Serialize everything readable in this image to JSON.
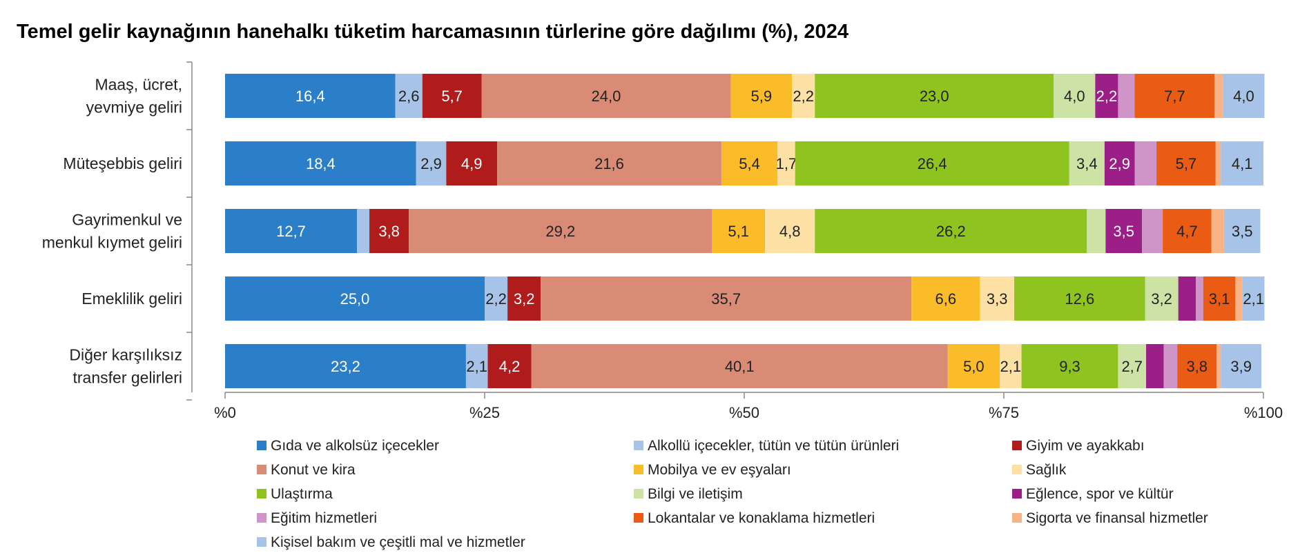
{
  "chart_data": {
    "type": "bar",
    "orientation": "horizontal",
    "stacked": true,
    "title": "Temel gelir kaynağının hanehalkı tüketim harcamasının türlerine göre dağılımı (%), 2024",
    "xlabel": "",
    "ylabel": "",
    "xlim": [
      0,
      100
    ],
    "x_ticks": [
      0,
      25,
      50,
      75,
      100
    ],
    "x_tick_labels": [
      "%0",
      "%25",
      "%50",
      "%75",
      "%100"
    ],
    "grid": false,
    "legend_position": "bottom",
    "categories": [
      [
        "Maaş, ücret,",
        "yevmiye geliri"
      ],
      [
        "Müteşebbis geliri"
      ],
      [
        "Gayrimenkul ve",
        "menkul kıymet geliri"
      ],
      [
        "Emeklilik geliri"
      ],
      [
        "Diğer karşılıksız",
        "transfer gelirleri"
      ]
    ],
    "series": [
      {
        "name": "Gıda ve alkolsüz içecekler",
        "color": "#2a7fc8",
        "label_color": "#ffffff",
        "values": [
          16.4,
          18.4,
          12.7,
          25.0,
          23.2
        ],
        "labels": [
          "16,4",
          "18,4",
          "12,7",
          "25,0",
          "23,2"
        ]
      },
      {
        "name": "Alkollü içecekler, tütün ve tütün ürünleri",
        "color": "#a7c4e8",
        "label_color": "#222222",
        "values": [
          2.6,
          2.9,
          1.2,
          2.2,
          2.1
        ],
        "labels": [
          "2,6",
          "2,9",
          null,
          "2,2",
          "2,1"
        ]
      },
      {
        "name": "Giyim ve ayakkabı",
        "color": "#b01c1c",
        "label_color": "#ffffff",
        "values": [
          5.7,
          4.9,
          3.8,
          3.2,
          4.2
        ],
        "labels": [
          "5,7",
          "4,9",
          "3,8",
          "3,2",
          "4,2"
        ]
      },
      {
        "name": "Konut ve kira",
        "color": "#d98b75",
        "label_color": "#222222",
        "values": [
          24.0,
          21.6,
          29.2,
          35.7,
          40.1
        ],
        "labels": [
          "24,0",
          "21,6",
          "29,2",
          "35,7",
          "40,1"
        ]
      },
      {
        "name": "Mobilya ve ev eşyaları",
        "color": "#fbbc2a",
        "label_color": "#222222",
        "values": [
          5.9,
          5.4,
          5.1,
          6.6,
          5.0
        ],
        "labels": [
          "5,9",
          "5,4",
          "5,1",
          "6,6",
          "5,0"
        ]
      },
      {
        "name": "Sağlık",
        "color": "#fde0a4",
        "label_color": "#222222",
        "values": [
          2.2,
          1.7,
          4.8,
          3.3,
          2.1
        ],
        "labels": [
          "2,2",
          "1,7",
          "4,8",
          "3,3",
          "2,1"
        ]
      },
      {
        "name": "Ulaştırma",
        "color": "#8fc31f",
        "label_color": "#222222",
        "values": [
          23.0,
          26.4,
          26.2,
          12.6,
          9.3
        ],
        "labels": [
          "23,0",
          "26,4",
          "26,2",
          "12,6",
          "9,3"
        ]
      },
      {
        "name": "Bilgi ve iletişim",
        "color": "#cde3a6",
        "label_color": "#222222",
        "values": [
          4.0,
          3.4,
          1.8,
          3.2,
          2.7
        ],
        "labels": [
          "4,0",
          "3,4",
          null,
          "3,2",
          "2,7"
        ]
      },
      {
        "name": "Eğlence, spor ve kültür",
        "color": "#9b1f86",
        "label_color": "#ffffff",
        "values": [
          2.2,
          2.9,
          3.5,
          1.7,
          1.7
        ],
        "labels": [
          "2,2",
          "2,9",
          "3,5",
          null,
          null
        ]
      },
      {
        "name": "Eğitim hizmetleri",
        "color": "#cf95c9",
        "label_color": "#222222",
        "values": [
          1.6,
          2.1,
          2.0,
          0.7,
          1.3
        ],
        "labels": [
          null,
          null,
          null,
          null,
          null
        ]
      },
      {
        "name": "Lokantalar ve konaklama hizmetleri",
        "color": "#ea5b14",
        "label_color": "#222222",
        "values": [
          7.7,
          5.7,
          4.7,
          3.1,
          3.8
        ],
        "labels": [
          "7,7",
          "5,7",
          "4,7",
          "3,1",
          "3,8"
        ]
      },
      {
        "name": "Sigorta ve finansal hizmetler",
        "color": "#f8b486",
        "label_color": "#222222",
        "values": [
          0.8,
          0.5,
          1.2,
          0.7,
          0.4
        ],
        "labels": [
          null,
          null,
          null,
          null,
          null
        ]
      },
      {
        "name": "Kişisel bakım ve çeşitli mal ve hizmetler",
        "color": "#a7c4e8",
        "label_color": "#222222",
        "values": [
          4.0,
          4.1,
          3.5,
          2.1,
          3.9
        ],
        "labels": [
          "4,0",
          "4,1",
          "3,5",
          "2,1",
          "3,9"
        ]
      }
    ]
  }
}
